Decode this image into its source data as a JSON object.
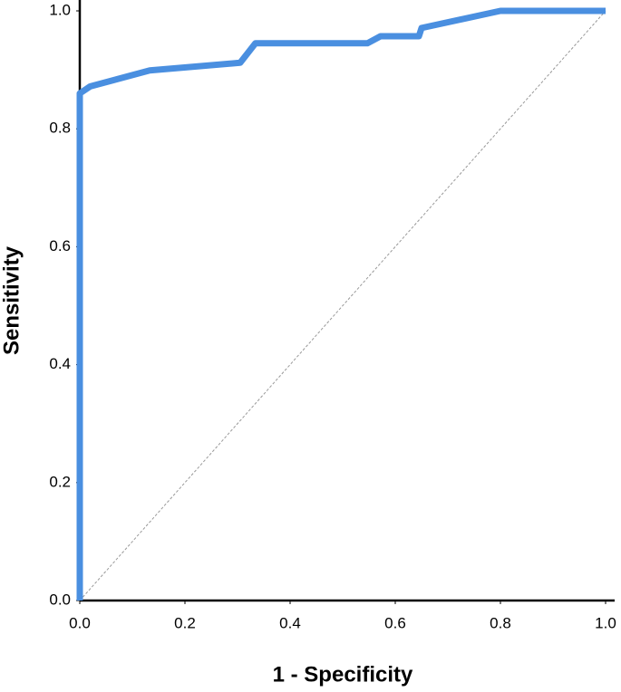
{
  "chart_data": {
    "type": "line",
    "x_label": "1 - Specificity",
    "y_label": "Sensitivity",
    "x": [
      0,
      0,
      0.02,
      0.133,
      0.305,
      0.334,
      0.547,
      0.572,
      0.645,
      0.65,
      0.8,
      1.0
    ],
    "values": [
      0,
      0.86,
      0.872,
      0.899,
      0.912,
      0.945,
      0.945,
      0.957,
      0.957,
      0.971,
      1.0,
      1.0
    ],
    "color": "#4a8fe0",
    "xlim": [
      0,
      1.0
    ],
    "ylim": [
      0,
      1.0
    ],
    "xticks": [
      {
        "value": 0,
        "label": "0.0"
      },
      0.2,
      0.4,
      0.6,
      0.8,
      {
        "value": 1,
        "label": "1.0"
      }
    ],
    "yticks": [
      {
        "value": 0,
        "label": "0.0"
      },
      0.2,
      0.4,
      0.6,
      0.8,
      {
        "value": 1,
        "label": "1.0"
      }
    ],
    "grid": false
  }
}
